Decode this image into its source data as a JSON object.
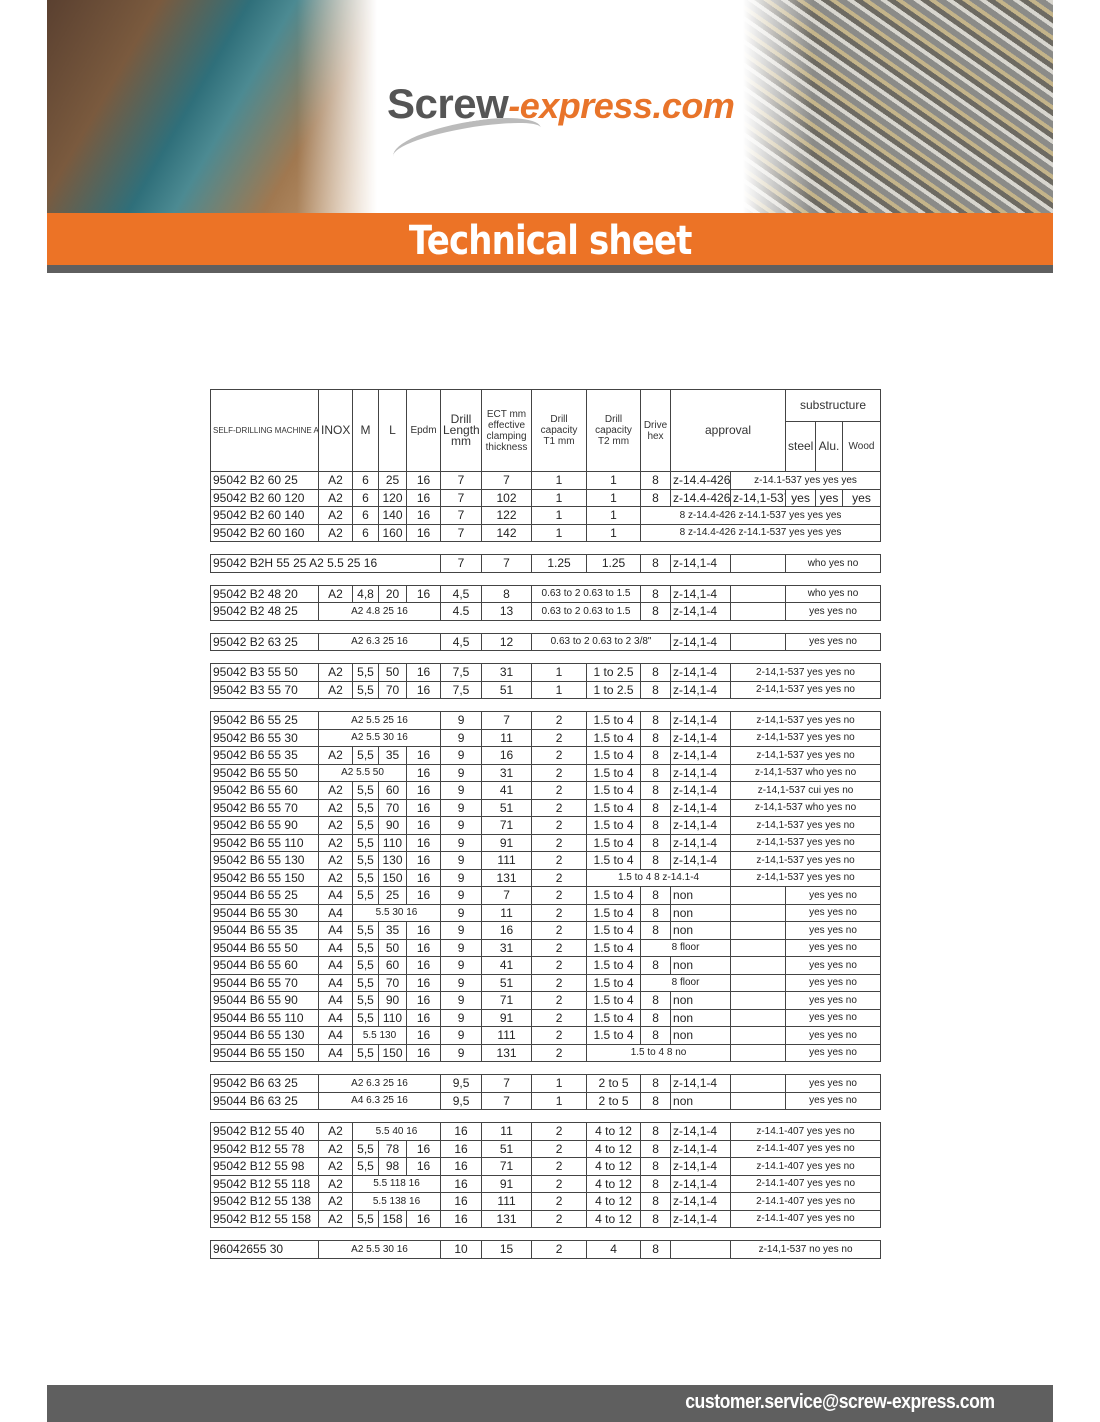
{
  "header": {
    "logo_primary": "Screw",
    "logo_secondary": "-express.com",
    "title": "Technical sheet"
  },
  "footer": {
    "email": "customer.service@screw-express.com"
  },
  "colors": {
    "accent": "#ec7326",
    "band_gray": "#5f5f5f"
  },
  "table": {
    "headers": {
      "article": "SELF-DRILLING MACHINE ARTICLE CODE",
      "inox": "INOX",
      "m": "M",
      "l": "L",
      "epdm": "Epdm",
      "drill_length": "Drill Length mm",
      "ect": "ECT mm effective clamping thickness",
      "t1": "Drill capacity T1 mm",
      "t2": "Drill capacity T2 mm",
      "drive": "Drive hex",
      "approval": "approval",
      "substructure": "substructure",
      "steel": "steel",
      "alu": "Alu.",
      "wood": "Wood"
    },
    "groups": [
      [
        [
          "95042 B2 60 25",
          "A2",
          "6",
          "25",
          "16",
          "7",
          "7",
          "1",
          "1",
          "8",
          "z-14.4-426",
          "z-14.1-537 yes yes yes",
          null,
          null,
          null
        ],
        [
          "95042 B2 60 120",
          "A2",
          "6",
          "120",
          "16",
          "7",
          "102",
          "1",
          "1",
          "8",
          "z-14.4-426",
          "z-14,1-537",
          "yes",
          "yes",
          "yes"
        ],
        [
          "95042 B2 60 140",
          "A2",
          "6",
          "140",
          "16",
          "7",
          "122",
          "1",
          "1",
          "8 z-14.4-426 z-14.1-537 yes yes yes",
          null,
          null,
          null,
          null,
          null
        ],
        [
          "95042 B2 60 160",
          "A2",
          "6",
          "160",
          "16",
          "7",
          "142",
          "1",
          "1",
          "8 z-14.4-426 z-14.1-537 yes yes yes",
          null,
          null,
          null,
          null,
          null
        ]
      ],
      [
        [
          "95042 B2H 55 25 A2 5.5 25 16",
          null,
          null,
          null,
          null,
          "7",
          "7",
          "1.25",
          "1.25",
          "8",
          "z-14,1-4",
          "",
          "who yes no",
          null,
          null
        ]
      ],
      [
        [
          "95042 B2 48 20",
          "A2",
          "4,8",
          "20",
          "16",
          "4,5",
          "8",
          "0.63 to 2 0.63 to 1.5",
          null,
          "8",
          "z-14,1-4",
          "",
          "who yes no",
          null,
          null
        ],
        [
          "95042 B2 48 25",
          "A2 4.8 25 16",
          null,
          null,
          null,
          "4.5",
          "13",
          "0.63 to 2 0.63 to 1.5",
          null,
          "8",
          "z-14,1-4",
          "",
          "yes yes no",
          null,
          null
        ]
      ],
      [
        [
          "95042 B2 63 25",
          "A2 6.3 25 16",
          null,
          null,
          null,
          "4,5",
          "12",
          "0.63 to 2 0.63 to 2 3/8\"",
          null,
          null,
          "z-14,1-4",
          "",
          "yes yes no",
          null,
          null
        ]
      ],
      [
        [
          "95042 B3 55 50",
          "A2",
          "5,5",
          "50",
          "16",
          "7,5",
          "31",
          "1",
          "1 to 2.5",
          "8",
          "z-14,1-4",
          "2-14,1-537 yes yes no",
          null,
          null,
          null
        ],
        [
          "95042 B3 55 70",
          "A2",
          "5,5",
          "70",
          "16",
          "7,5",
          "51",
          "1",
          "1 to 2.5",
          "8",
          "z-14,1-4",
          "2-14,1-537 yes yes no",
          null,
          null,
          null
        ]
      ],
      [
        [
          "95042 B6 55 25",
          "A2 5.5 25 16",
          null,
          null,
          null,
          "9",
          "7",
          "2",
          "1.5 to 4",
          "8",
          "z-14,1-4",
          "z-14,1-537 yes yes no",
          null,
          null,
          null
        ],
        [
          "95042 B6 55 30",
          "A2 5.5 30 16",
          null,
          null,
          null,
          "9",
          "11",
          "2",
          "1.5 to 4",
          "8",
          "z-14,1-4",
          "z-14,1-537 yes yes no",
          null,
          null,
          null
        ],
        [
          "95042 B6 55 35",
          "A2",
          "5,5",
          "35",
          "16",
          "9",
          "16",
          "2",
          "1.5 to 4",
          "8",
          "z-14,1-4",
          "z-14,1-537 yes yes no",
          null,
          null,
          null
        ],
        [
          "95042 B6 55 50",
          "A2 5.5 50",
          null,
          null,
          "16",
          "9",
          "31",
          "2",
          "1.5 to 4",
          "8",
          "z-14,1-4",
          "z-14,1-537 who yes no",
          null,
          null,
          null
        ],
        [
          "95042 B6 55 60",
          "A2",
          "5,5",
          "60",
          "16",
          "9",
          "41",
          "2",
          "1.5 to 4",
          "8",
          "z-14,1-4",
          "z-14,1-537 cui yes no",
          null,
          null,
          null
        ],
        [
          "95042 B6 55 70",
          "A2",
          "5,5",
          "70",
          "16",
          "9",
          "51",
          "2",
          "1.5 to 4",
          "8",
          "z-14,1-4",
          "z-14,1-537 who yes no",
          null,
          null,
          null
        ],
        [
          "95042 B6 55 90",
          "A2",
          "5,5",
          "90",
          "16",
          "9",
          "71",
          "2",
          "1.5 to 4",
          "8",
          "z-14,1-4",
          "z-14,1-537 yes yes no",
          null,
          null,
          null
        ],
        [
          "95042 B6 55 110",
          "A2",
          "5,5",
          "110",
          "16",
          "9",
          "91",
          "2",
          "1.5 to 4",
          "8",
          "z-14,1-4",
          "z-14,1-537 yes yes no",
          null,
          null,
          null
        ],
        [
          "95042 B6 55 130",
          "A2",
          "5,5",
          "130",
          "16",
          "9",
          "111",
          "2",
          "1.5 to 4",
          "8",
          "z-14,1-4",
          "z-14,1-537 yes yes no",
          null,
          null,
          null
        ],
        [
          "95042 B6 55 150",
          "A2",
          "5,5",
          "150",
          "16",
          "9",
          "131",
          "2",
          "1.5 to 4 8 z-14.1-4",
          null,
          null,
          "z-14,1-537 yes yes no",
          null,
          null,
          null
        ],
        [
          "95044 B6 55 25",
          "A4",
          "5,5",
          "25",
          "16",
          "9",
          "7",
          "2",
          "1.5 to 4",
          "8",
          "non",
          "",
          "yes yes no",
          null,
          null
        ],
        [
          "95044 B6 55 30",
          "A4",
          "5.5 30 16",
          null,
          null,
          "9",
          "11",
          "2",
          "1.5 to 4",
          "8",
          "non",
          "",
          "yes yes no",
          null,
          null
        ],
        [
          "95044 B6 55 35",
          "A4",
          "5,5",
          "35",
          "16",
          "9",
          "16",
          "2",
          "1.5 to 4",
          "8",
          "non",
          "",
          "yes yes no",
          null,
          null
        ],
        [
          "95044 B6 55 50",
          "A4",
          "5,5",
          "50",
          "16",
          "9",
          "31",
          "2",
          "1.5 to 4",
          "8 floor",
          null,
          "",
          "yes yes no",
          null,
          null
        ],
        [
          "95044 B6 55 60",
          "A4",
          "5,5",
          "60",
          "16",
          "9",
          "41",
          "2",
          "1.5 to 4",
          "8",
          "non",
          "",
          "yes yes no",
          null,
          null
        ],
        [
          "95044 B6 55 70",
          "A4",
          "5,5",
          "70",
          "16",
          "9",
          "51",
          "2",
          "1.5 to 4",
          "8 floor",
          null,
          "",
          "yes yes no",
          null,
          null
        ],
        [
          "95044 B6 55 90",
          "A4",
          "5,5",
          "90",
          "16",
          "9",
          "71",
          "2",
          "1.5 to 4",
          "8",
          "non",
          "",
          "yes yes no",
          null,
          null
        ],
        [
          "95044 B6 55 110",
          "A4",
          "5,5",
          "110",
          "16",
          "9",
          "91",
          "2",
          "1.5 to 4",
          "8",
          "non",
          "",
          "yes yes no",
          null,
          null
        ],
        [
          "95044 B6 55 130",
          "A4",
          "5.5 130",
          null,
          "16",
          "9",
          "111",
          "2",
          "1.5 to 4",
          "8",
          "non",
          "",
          "yes yes no",
          null,
          null
        ],
        [
          "95044 B6 55 150",
          "A4",
          "5,5",
          "150",
          "16",
          "9",
          "131",
          "2",
          "1.5 to 4 8 no",
          null,
          null,
          "",
          "yes yes no",
          null,
          null
        ]
      ],
      [
        [
          "95042 B6 63 25",
          "A2 6.3 25 16",
          null,
          null,
          null,
          "9,5",
          "7",
          "1",
          "2 to 5",
          "8",
          "z-14,1-4",
          "",
          "yes yes no",
          null,
          null
        ],
        [
          "95044 B6 63 25",
          "A4 6.3 25 16",
          null,
          null,
          null,
          "9,5",
          "7",
          "1",
          "2 to 5",
          "8",
          "non",
          "",
          "yes yes no",
          null,
          null
        ]
      ],
      [
        [
          "95042 B12 55 40",
          "A2",
          "5.5 40 16",
          null,
          null,
          "16",
          "11",
          "2",
          "4 to 12",
          "8",
          "z-14,1-4",
          "z-14.1-407 yes yes no",
          null,
          null,
          null
        ],
        [
          "95042 B12 55 78",
          "A2",
          "5,5",
          "78",
          "16",
          "16",
          "51",
          "2",
          "4 to 12",
          "8",
          "z-14,1-4",
          "z-14.1-407 yes yes no",
          null,
          null,
          null
        ],
        [
          "95042 B12 55 98",
          "A2",
          "5,5",
          "98",
          "16",
          "16",
          "71",
          "2",
          "4 to 12",
          "8",
          "z-14,1-4",
          "z-14.1-407 yes yes no",
          null,
          null,
          null
        ],
        [
          "95042 B12 55 118",
          "A2",
          "5.5 118 16",
          null,
          null,
          "16",
          "91",
          "2",
          "4 to 12",
          "8",
          "z-14,1-4",
          "2-14.1-407 yes yes no",
          null,
          null,
          null
        ],
        [
          "95042 B12 55 138",
          "A2",
          "5.5 138 16",
          null,
          null,
          "16",
          "111",
          "2",
          "4 to 12",
          "8",
          "z-14,1-4",
          "2-14.1-407 yes yes no",
          null,
          null,
          null
        ],
        [
          "95042 B12 55 158",
          "A2",
          "5,5",
          "158",
          "16",
          "16",
          "131",
          "2",
          "4 to 12",
          "8",
          "z-14,1-4",
          "z-14.1-407 yes yes no",
          null,
          null,
          null
        ]
      ],
      [
        [
          "96042655 30",
          "A2 5.5 30 16",
          null,
          null,
          null,
          "10",
          "15",
          "2",
          "4",
          "8",
          "",
          "z-14,1-537 no yes no",
          null,
          null,
          null
        ]
      ]
    ]
  }
}
